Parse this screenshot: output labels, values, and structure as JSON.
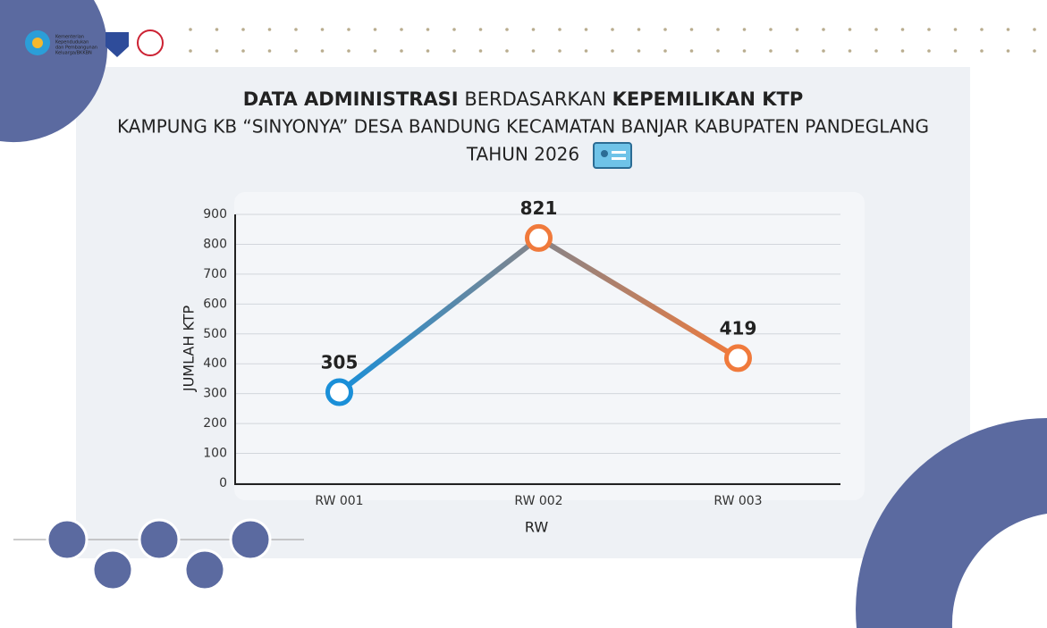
{
  "logo_text": [
    "Kementerian",
    "Kependudukan",
    "dan Pembangunan",
    "Keluarga/BKKBN"
  ],
  "chart_data": {
    "type": "line",
    "title": [
      "DATA ADMINISTRASI",
      "BERDASARKAN",
      "KEPEMILIKAN KTP"
    ],
    "subtitle": [
      "KAMPUNG KB “SINYONYA” DESA BANDUNG KECAMATAN BANJAR KABUPATEN PANDEGLANG",
      "TAHUN 2026"
    ],
    "categories": [
      "RW 001",
      "RW 002",
      "RW 003"
    ],
    "values": [
      305,
      821,
      419
    ],
    "gradient": [
      "#1a8fd8",
      "#f07a3c"
    ],
    "xlabel": "RW",
    "ylabel": "JUMLAH KTP",
    "ylim": [
      0,
      900
    ],
    "yticks": [
      0,
      100,
      200,
      300,
      400,
      500,
      600,
      700,
      800,
      900
    ],
    "grid": true
  }
}
